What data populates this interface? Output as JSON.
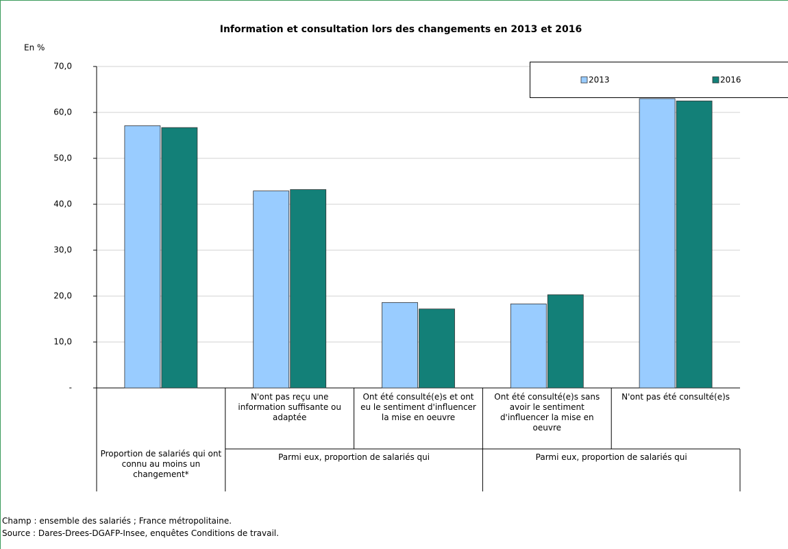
{
  "chart_data": {
    "type": "bar",
    "title": "Information et consultation lors des changements en 2013 et 2016",
    "y_label": "En %",
    "categories": [
      null,
      "N'ont pas reçu une information suffisante ou adaptée",
      "Ont été consulté(e)s et ont eu le sentiment d'influencer la mise en oeuvre",
      "Ont été consulté(e)s sans avoir le sentiment d'influencer la mise en oeuvre",
      "N'ont pas été consulté(e)s"
    ],
    "group_labels": [
      "Proportion de salariés qui ont connu au moins un changement*",
      "Parmi eux, proportion de salariés qui",
      "Parmi eux, proportion de salariés qui"
    ],
    "series": [
      {
        "name": "2013",
        "color": "#99ccff",
        "values": [
          57.1,
          42.9,
          18.6,
          18.3,
          63.0
        ]
      },
      {
        "name": "2016",
        "color": "#138078",
        "values": [
          56.7,
          43.2,
          17.2,
          20.3,
          62.5
        ]
      }
    ],
    "ylim": [
      0,
      70
    ],
    "yticks": [
      {
        "value": 0,
        "label": "-"
      },
      {
        "value": 10,
        "label": "10,0"
      },
      {
        "value": 20,
        "label": "20,0"
      },
      {
        "value": 30,
        "label": "30,0"
      },
      {
        "value": 40,
        "label": "40,0"
      },
      {
        "value": 50,
        "label": "50,0"
      },
      {
        "value": 60,
        "label": "60,0"
      },
      {
        "value": 70,
        "label": "70,0"
      }
    ],
    "grid": true,
    "legend": "top-right",
    "notes": [
      "Champ : ensemble des salariés ; France métropolitaine.",
      "Source : Dares-Drees-DGAFP-Insee, enquêtes Conditions de travail."
    ]
  }
}
